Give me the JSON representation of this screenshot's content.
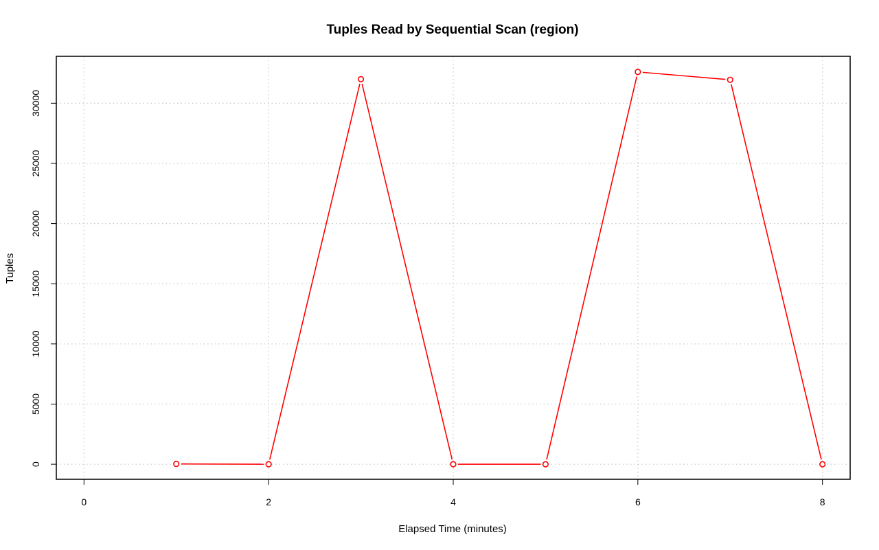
{
  "chart_data": {
    "type": "line",
    "title": "Tuples Read by Sequential Scan (region)",
    "xlabel": "Elapsed Time (minutes)",
    "ylabel": "Tuples",
    "xlim": [
      -0.3,
      8.3
    ],
    "ylim": [
      -1250,
      33900
    ],
    "x_ticks": [
      0,
      2,
      4,
      6,
      8
    ],
    "y_ticks": [
      0,
      5000,
      10000,
      15000,
      20000,
      25000,
      30000
    ],
    "grid": true,
    "legend": "none",
    "series": [
      {
        "color": "#ff0000",
        "x": [
          1,
          2,
          3,
          4,
          5,
          6,
          7,
          8
        ],
        "values": [
          25,
          0,
          32000,
          0,
          0,
          32600,
          31950,
          0
        ]
      }
    ]
  }
}
